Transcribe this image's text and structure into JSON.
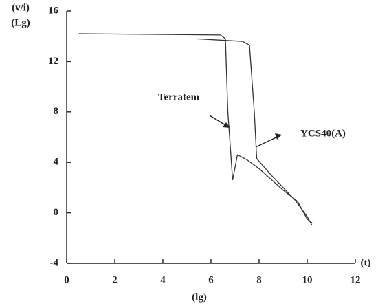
{
  "chart_data": {
    "type": "line",
    "y_label_lines": [
      "(v/i)",
      "(Lg)"
    ],
    "x_label_lines": [
      "(t)",
      "(lg)"
    ],
    "xlim": [
      0,
      12
    ],
    "xticks": [
      0,
      2,
      4,
      6,
      8,
      10,
      12
    ],
    "ylim": [
      -4,
      16
    ],
    "yticks": [
      -4,
      0,
      4,
      8,
      12,
      16
    ],
    "series": [
      {
        "name": "Terratem",
        "color": "#333333",
        "x": [
          0.5,
          6.4,
          6.6,
          6.7,
          6.9,
          7.1,
          7.5,
          8,
          9,
          9.6,
          10,
          10.2
        ],
        "values": [
          14.2,
          14.1,
          13.8,
          8,
          2.6,
          4.6,
          4.2,
          3.5,
          1.8,
          0.9,
          -0.5,
          -0.8
        ]
      },
      {
        "name": "YCS40(A)",
        "color": "#333333",
        "x": [
          5.4,
          7.3,
          7.6,
          7.8,
          7.9,
          8.5,
          9,
          9.5,
          10,
          10.2
        ],
        "values": [
          13.8,
          13.6,
          13.3,
          8,
          4.3,
          3,
          2,
          1,
          -0.3,
          -1
        ]
      }
    ]
  }
}
